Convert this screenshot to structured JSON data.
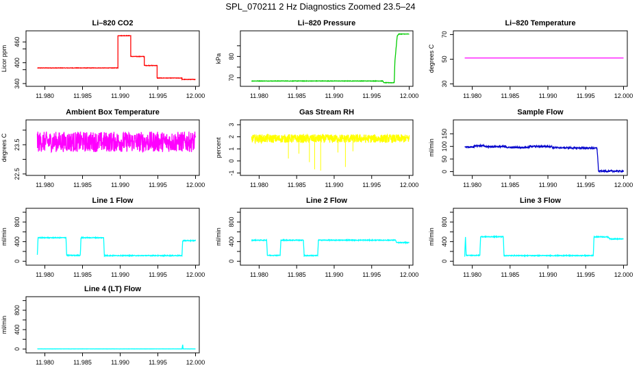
{
  "page_title": "SPL_070211  2 Hz Diagnostics Zoomed 23.5–24",
  "chart_data": [
    {
      "id": "co2",
      "type": "line",
      "title": "Li–820 CO2",
      "ylabel": "Licor ppm",
      "color": "#ff0000",
      "noise": 0.6,
      "xlim": [
        11.9775,
        12.0005
      ],
      "ylim": [
        332,
        492
      ],
      "xticks": [
        11.98,
        11.985,
        11.99,
        11.995,
        12.0
      ],
      "xtick_labels": [
        "11.980",
        "11.985",
        "11.990",
        "11.995",
        "12.000"
      ],
      "yticks": [
        340,
        380,
        400,
        440,
        460
      ],
      "ytick_labels": [
        "340",
        "",
        "400",
        "",
        "460"
      ],
      "series": [
        {
          "x": [
            11.979,
            11.9897,
            11.9897,
            11.9914,
            11.9914,
            11.9932,
            11.9932,
            11.9949,
            11.9949,
            11.9982,
            11.9982,
            12.0
          ],
          "y": [
            385,
            385,
            478,
            478,
            418,
            418,
            392,
            392,
            356,
            356,
            352,
            352
          ]
        }
      ]
    },
    {
      "id": "pressure",
      "type": "line",
      "title": "Li–820 Pressure",
      "ylabel": "kPa",
      "color": "#00cc00",
      "noise": 0.1,
      "xlim": [
        11.9775,
        12.0005
      ],
      "ylim": [
        66,
        92
      ],
      "xticks": [
        11.98,
        11.985,
        11.99,
        11.995,
        12.0
      ],
      "xtick_labels": [
        "11.980",
        "11.985",
        "11.990",
        "11.995",
        "12.000"
      ],
      "yticks": [
        70,
        75,
        80,
        85
      ],
      "ytick_labels": [
        "70",
        "",
        "80",
        ""
      ],
      "series": [
        {
          "x": [
            11.979,
            11.9965,
            11.9966,
            11.998,
            11.9981,
            11.9984,
            11.9986,
            12.0
          ],
          "y": [
            68.5,
            68.5,
            67.7,
            67.7,
            78,
            89.5,
            90.5,
            90.5
          ]
        }
      ]
    },
    {
      "id": "licor_temp",
      "type": "line",
      "title": "Li–820 Temperature",
      "ylabel": "degrees C",
      "color": "#ff00ff",
      "noise": 0,
      "xlim": [
        11.9775,
        12.0005
      ],
      "ylim": [
        28,
        73
      ],
      "xticks": [
        11.98,
        11.985,
        11.99,
        11.995,
        12.0
      ],
      "xtick_labels": [
        "11.980",
        "11.985",
        "11.990",
        "11.995",
        "12.000"
      ],
      "yticks": [
        30,
        50,
        70
      ],
      "ytick_labels": [
        "30",
        "50",
        "70"
      ],
      "series": [
        {
          "x": [
            11.979,
            12.0
          ],
          "y": [
            51,
            51
          ]
        }
      ]
    },
    {
      "id": "box_temp",
      "type": "line",
      "title": "Ambient Box Temperature",
      "ylabel": "degrees C",
      "color": "#ff00ff",
      "noise": 0.35,
      "xlim": [
        11.9775,
        12.0005
      ],
      "ylim": [
        22.45,
        24.35
      ],
      "xticks": [
        11.98,
        11.985,
        11.99,
        11.995,
        12.0
      ],
      "xtick_labels": [
        "11.980",
        "11.985",
        "11.990",
        "11.995",
        "12.000"
      ],
      "yticks": [
        22.5,
        23.0,
        23.5,
        24.0
      ],
      "ytick_labels": [
        "22.5",
        "",
        "23.5",
        ""
      ],
      "series": [
        {
          "x": [
            11.979,
            12.0
          ],
          "y": [
            23.6,
            23.6
          ]
        }
      ]
    },
    {
      "id": "rh",
      "type": "line",
      "title": "Gas Stream RH",
      "ylabel": "percent",
      "color": "#ffff00",
      "noise": 0.35,
      "xlim": [
        11.9775,
        12.0005
      ],
      "ylim": [
        -1.2,
        3.4
      ],
      "xticks": [
        11.98,
        11.985,
        11.99,
        11.995,
        12.0
      ],
      "xtick_labels": [
        "11.980",
        "11.985",
        "11.990",
        "11.995",
        "12.000"
      ],
      "yticks": [
        -1,
        0,
        1,
        2,
        3
      ],
      "ytick_labels": [
        "-1",
        "0",
        "1",
        "2",
        "3"
      ],
      "series": [
        {
          "x": [
            11.979,
            12.0
          ],
          "y": [
            1.85,
            1.85
          ]
        }
      ],
      "spikes": [
        [
          11.9839,
          0.2
        ],
        [
          11.9867,
          -0.1
        ],
        [
          11.9874,
          -0.7
        ],
        [
          11.9882,
          -0.8
        ],
        [
          11.9915,
          -0.5
        ],
        [
          11.9853,
          0.6
        ],
        [
          11.9905,
          0.7
        ],
        [
          11.9925,
          0.8
        ]
      ]
    },
    {
      "id": "sample_flow",
      "type": "line",
      "title": "Sample Flow",
      "ylabel": "ml/min",
      "color": "#0000cc",
      "noise": 3,
      "xlim": [
        11.9775,
        12.0005
      ],
      "ylim": [
        -15,
        205
      ],
      "xticks": [
        11.98,
        11.985,
        11.99,
        11.995,
        12.0
      ],
      "xtick_labels": [
        "11.980",
        "11.985",
        "11.990",
        "11.995",
        "12.000"
      ],
      "yticks": [
        0,
        50,
        100,
        150
      ],
      "ytick_labels": [
        "0",
        "50",
        "100",
        "150"
      ],
      "series": [
        {
          "x": [
            11.979,
            11.9802,
            11.9803,
            11.9815,
            11.9816,
            11.9845,
            11.9846,
            11.9875,
            11.9876,
            11.9905,
            11.9906,
            11.9965,
            11.9967,
            12.0
          ],
          "y": [
            98,
            98,
            103,
            103,
            99,
            99,
            96,
            96,
            100,
            100,
            95,
            93,
            2,
            2
          ]
        }
      ]
    },
    {
      "id": "line1",
      "type": "line",
      "title": "Line 1 Flow",
      "ylabel": "ml/min",
      "color": "#00ffff",
      "noise": 8,
      "xlim": [
        11.9775,
        12.0005
      ],
      "ylim": [
        -80,
        1080
      ],
      "xticks": [
        11.98,
        11.985,
        11.99,
        11.995,
        12.0
      ],
      "xtick_labels": [
        "11.980",
        "11.985",
        "11.990",
        "11.995",
        "12.000"
      ],
      "yticks": [
        0,
        200,
        400,
        600,
        800,
        1000
      ],
      "ytick_labels": [
        "0",
        "",
        "400",
        "",
        "800",
        ""
      ],
      "series": [
        {
          "x": [
            11.979,
            11.9791,
            11.9828,
            11.9829,
            11.9847,
            11.9848,
            11.9878,
            11.9879,
            11.9982,
            11.9983,
            12.0
          ],
          "y": [
            130,
            480,
            480,
            120,
            120,
            480,
            480,
            115,
            115,
            420,
            420
          ]
        }
      ]
    },
    {
      "id": "line2",
      "type": "line",
      "title": "Line 2 Flow",
      "ylabel": "ml/min",
      "color": "#00ffff",
      "noise": 8,
      "xlim": [
        11.9775,
        12.0005
      ],
      "ylim": [
        -80,
        1080
      ],
      "xticks": [
        11.98,
        11.985,
        11.99,
        11.995,
        12.0
      ],
      "xtick_labels": [
        "11.980",
        "11.985",
        "11.990",
        "11.995",
        "12.000"
      ],
      "yticks": [
        0,
        200,
        400,
        600,
        800,
        1000
      ],
      "ytick_labels": [
        "0",
        "",
        "400",
        "",
        "800",
        ""
      ],
      "series": [
        {
          "x": [
            11.979,
            11.981,
            11.9811,
            11.9828,
            11.9829,
            11.9859,
            11.986,
            11.9878,
            11.9879,
            11.9982,
            11.9983,
            12.0
          ],
          "y": [
            430,
            430,
            120,
            120,
            430,
            430,
            115,
            115,
            430,
            430,
            380,
            380
          ]
        }
      ]
    },
    {
      "id": "line3",
      "type": "line",
      "title": "Line 3 Flow",
      "ylabel": "ml/min",
      "color": "#00ffff",
      "noise": 8,
      "xlim": [
        11.9775,
        12.0005
      ],
      "ylim": [
        -80,
        1080
      ],
      "xticks": [
        11.98,
        11.985,
        11.99,
        11.995,
        12.0
      ],
      "xtick_labels": [
        "11.980",
        "11.985",
        "11.990",
        "11.995",
        "12.000"
      ],
      "yticks": [
        0,
        200,
        400,
        600,
        800,
        1000
      ],
      "ytick_labels": [
        "0",
        "",
        "400",
        "",
        "800",
        ""
      ],
      "series": [
        {
          "x": [
            11.979,
            11.9791,
            11.9792,
            11.981,
            11.9811,
            11.9841,
            11.9842,
            11.996,
            11.9961,
            11.998,
            11.9982,
            12.0
          ],
          "y": [
            100,
            500,
            120,
            120,
            500,
            500,
            115,
            115,
            500,
            495,
            455,
            455
          ]
        }
      ]
    },
    {
      "id": "line4",
      "type": "line",
      "title": "Line 4 (LT) Flow",
      "ylabel": "ml/min",
      "color": "#00ffff",
      "noise": 1.5,
      "xlim": [
        11.9775,
        12.0005
      ],
      "ylim": [
        -80,
        1080
      ],
      "xticks": [
        11.98,
        11.985,
        11.99,
        11.995,
        12.0
      ],
      "xtick_labels": [
        "11.980",
        "11.985",
        "11.990",
        "11.995",
        "12.000"
      ],
      "yticks": [
        0,
        200,
        400,
        600,
        800,
        1000
      ],
      "ytick_labels": [
        "0",
        "",
        "400",
        "",
        "800",
        ""
      ],
      "series": [
        {
          "x": [
            11.979,
            11.9982,
            11.9983,
            11.99835,
            12.0
          ],
          "y": [
            2,
            2,
            90,
            2,
            2
          ]
        }
      ]
    }
  ]
}
